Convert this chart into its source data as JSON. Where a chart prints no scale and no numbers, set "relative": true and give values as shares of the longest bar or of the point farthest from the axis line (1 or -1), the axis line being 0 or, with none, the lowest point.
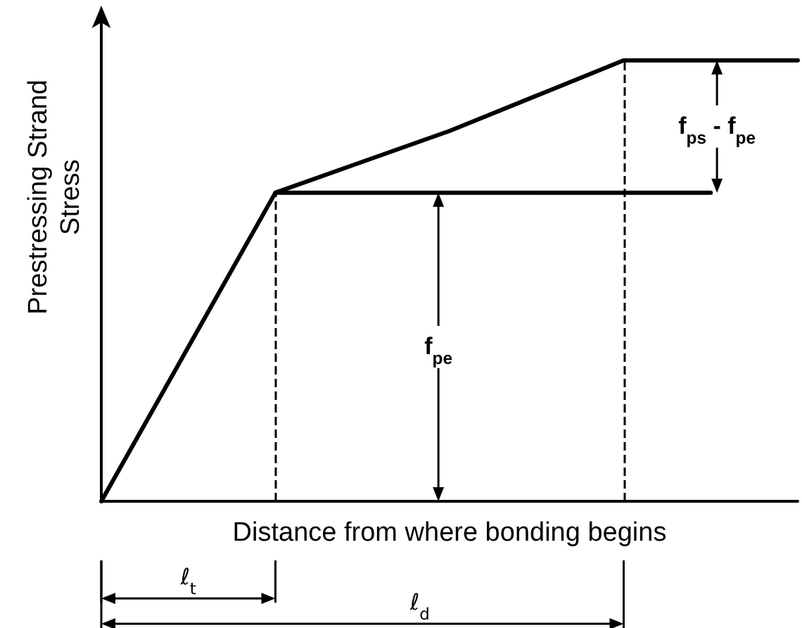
{
  "chart_data": {
    "type": "line",
    "xlabel": "Distance from where bonding begins",
    "ylabel": "Prestressing Strand Stress",
    "categories": [
      null,
      null,
      null,
      null,
      null,
      null,
      null,
      null,
      null
    ],
    "relative": true,
    "marker": "none",
    "series": [
      {
        "color": "#000000",
        "values": [
          0,
          0.35,
          0.7,
          0.77,
          0.84,
          0.92,
          1,
          1,
          1
        ]
      },
      {
        "color": "#000000",
        "values": [
          null,
          null,
          0.7,
          0.7,
          0.7,
          0.7,
          0.7,
          0.7,
          null
        ]
      }
    ],
    "annotations": [
      {
        "text": "f$_{pe}$",
        "y": 0.7
      },
      {
        "text": "f$_{ps}$ - f$_{pe}$",
        "y": 1
      },
      "ℓ$_{t}$",
      "ℓ$_{d}$"
    ]
  }
}
